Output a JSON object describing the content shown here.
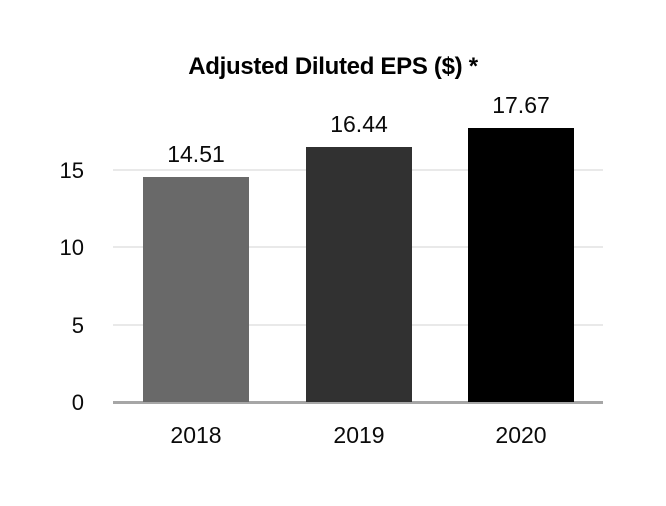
{
  "chart_data": {
    "type": "bar",
    "title": "Adjusted Diluted EPS ($) *",
    "categories": [
      "2018",
      "2019",
      "2020"
    ],
    "values": [
      14.51,
      16.44,
      17.67
    ],
    "value_labels": [
      "14.51",
      "16.44",
      "17.67"
    ],
    "y_ticks": [
      0,
      5,
      10,
      15
    ],
    "y_tick_labels": [
      "0",
      "5",
      "10",
      "15"
    ],
    "ylim": [
      0,
      18.8
    ],
    "xlabel": "",
    "ylabel": "",
    "grid": "horizontal",
    "legend": "none",
    "colors": {
      "bars": [
        "#696969",
        "#313131",
        "#000000"
      ],
      "gridline": "#e9e9e9",
      "axis_line": "#a6a6a6",
      "text": "#000000",
      "background": "#ffffff"
    }
  }
}
